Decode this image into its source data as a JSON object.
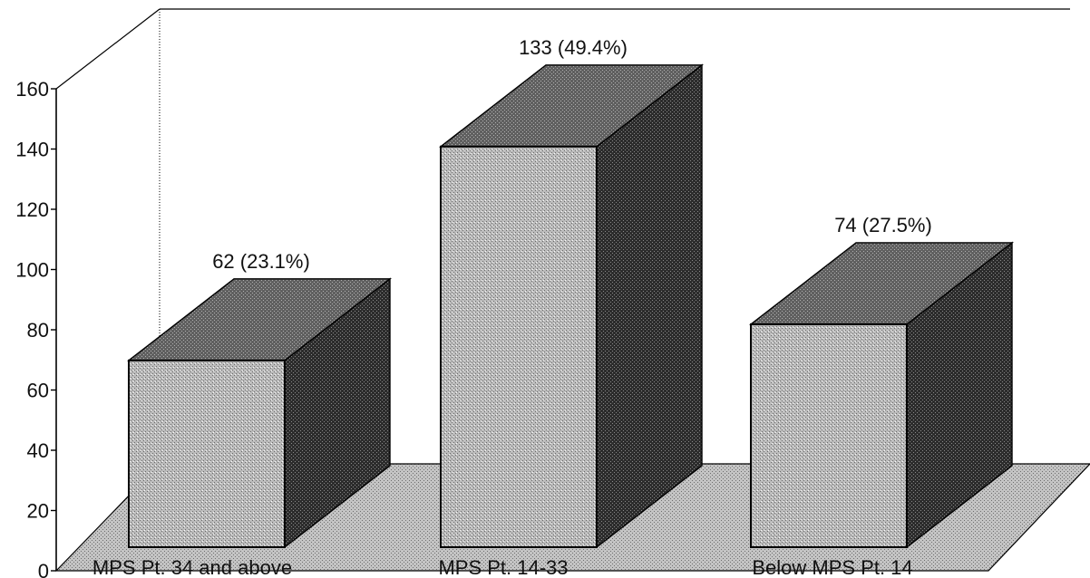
{
  "chart_data": {
    "type": "bar",
    "style": "3d",
    "categories": [
      "MPS Pt. 34 and above",
      "MPS Pt. 14-33",
      "Below MPS Pt. 14"
    ],
    "values": [
      62,
      133,
      74
    ],
    "data_labels": [
      "62 (23.1%)",
      "133 (49.4%)",
      "74 (27.5%)"
    ],
    "title": "",
    "xlabel": "",
    "ylabel": "",
    "ylim": [
      0,
      160
    ],
    "yticks": [
      0,
      20,
      40,
      60,
      80,
      100,
      120,
      140,
      160
    ],
    "grid": false,
    "legend": "none",
    "colors": {
      "bar_front": "#a8a8a8",
      "bar_top": "#555555",
      "bar_side": "#2e2e2e",
      "floor": "#b4b4b4",
      "line": "#000000"
    }
  }
}
